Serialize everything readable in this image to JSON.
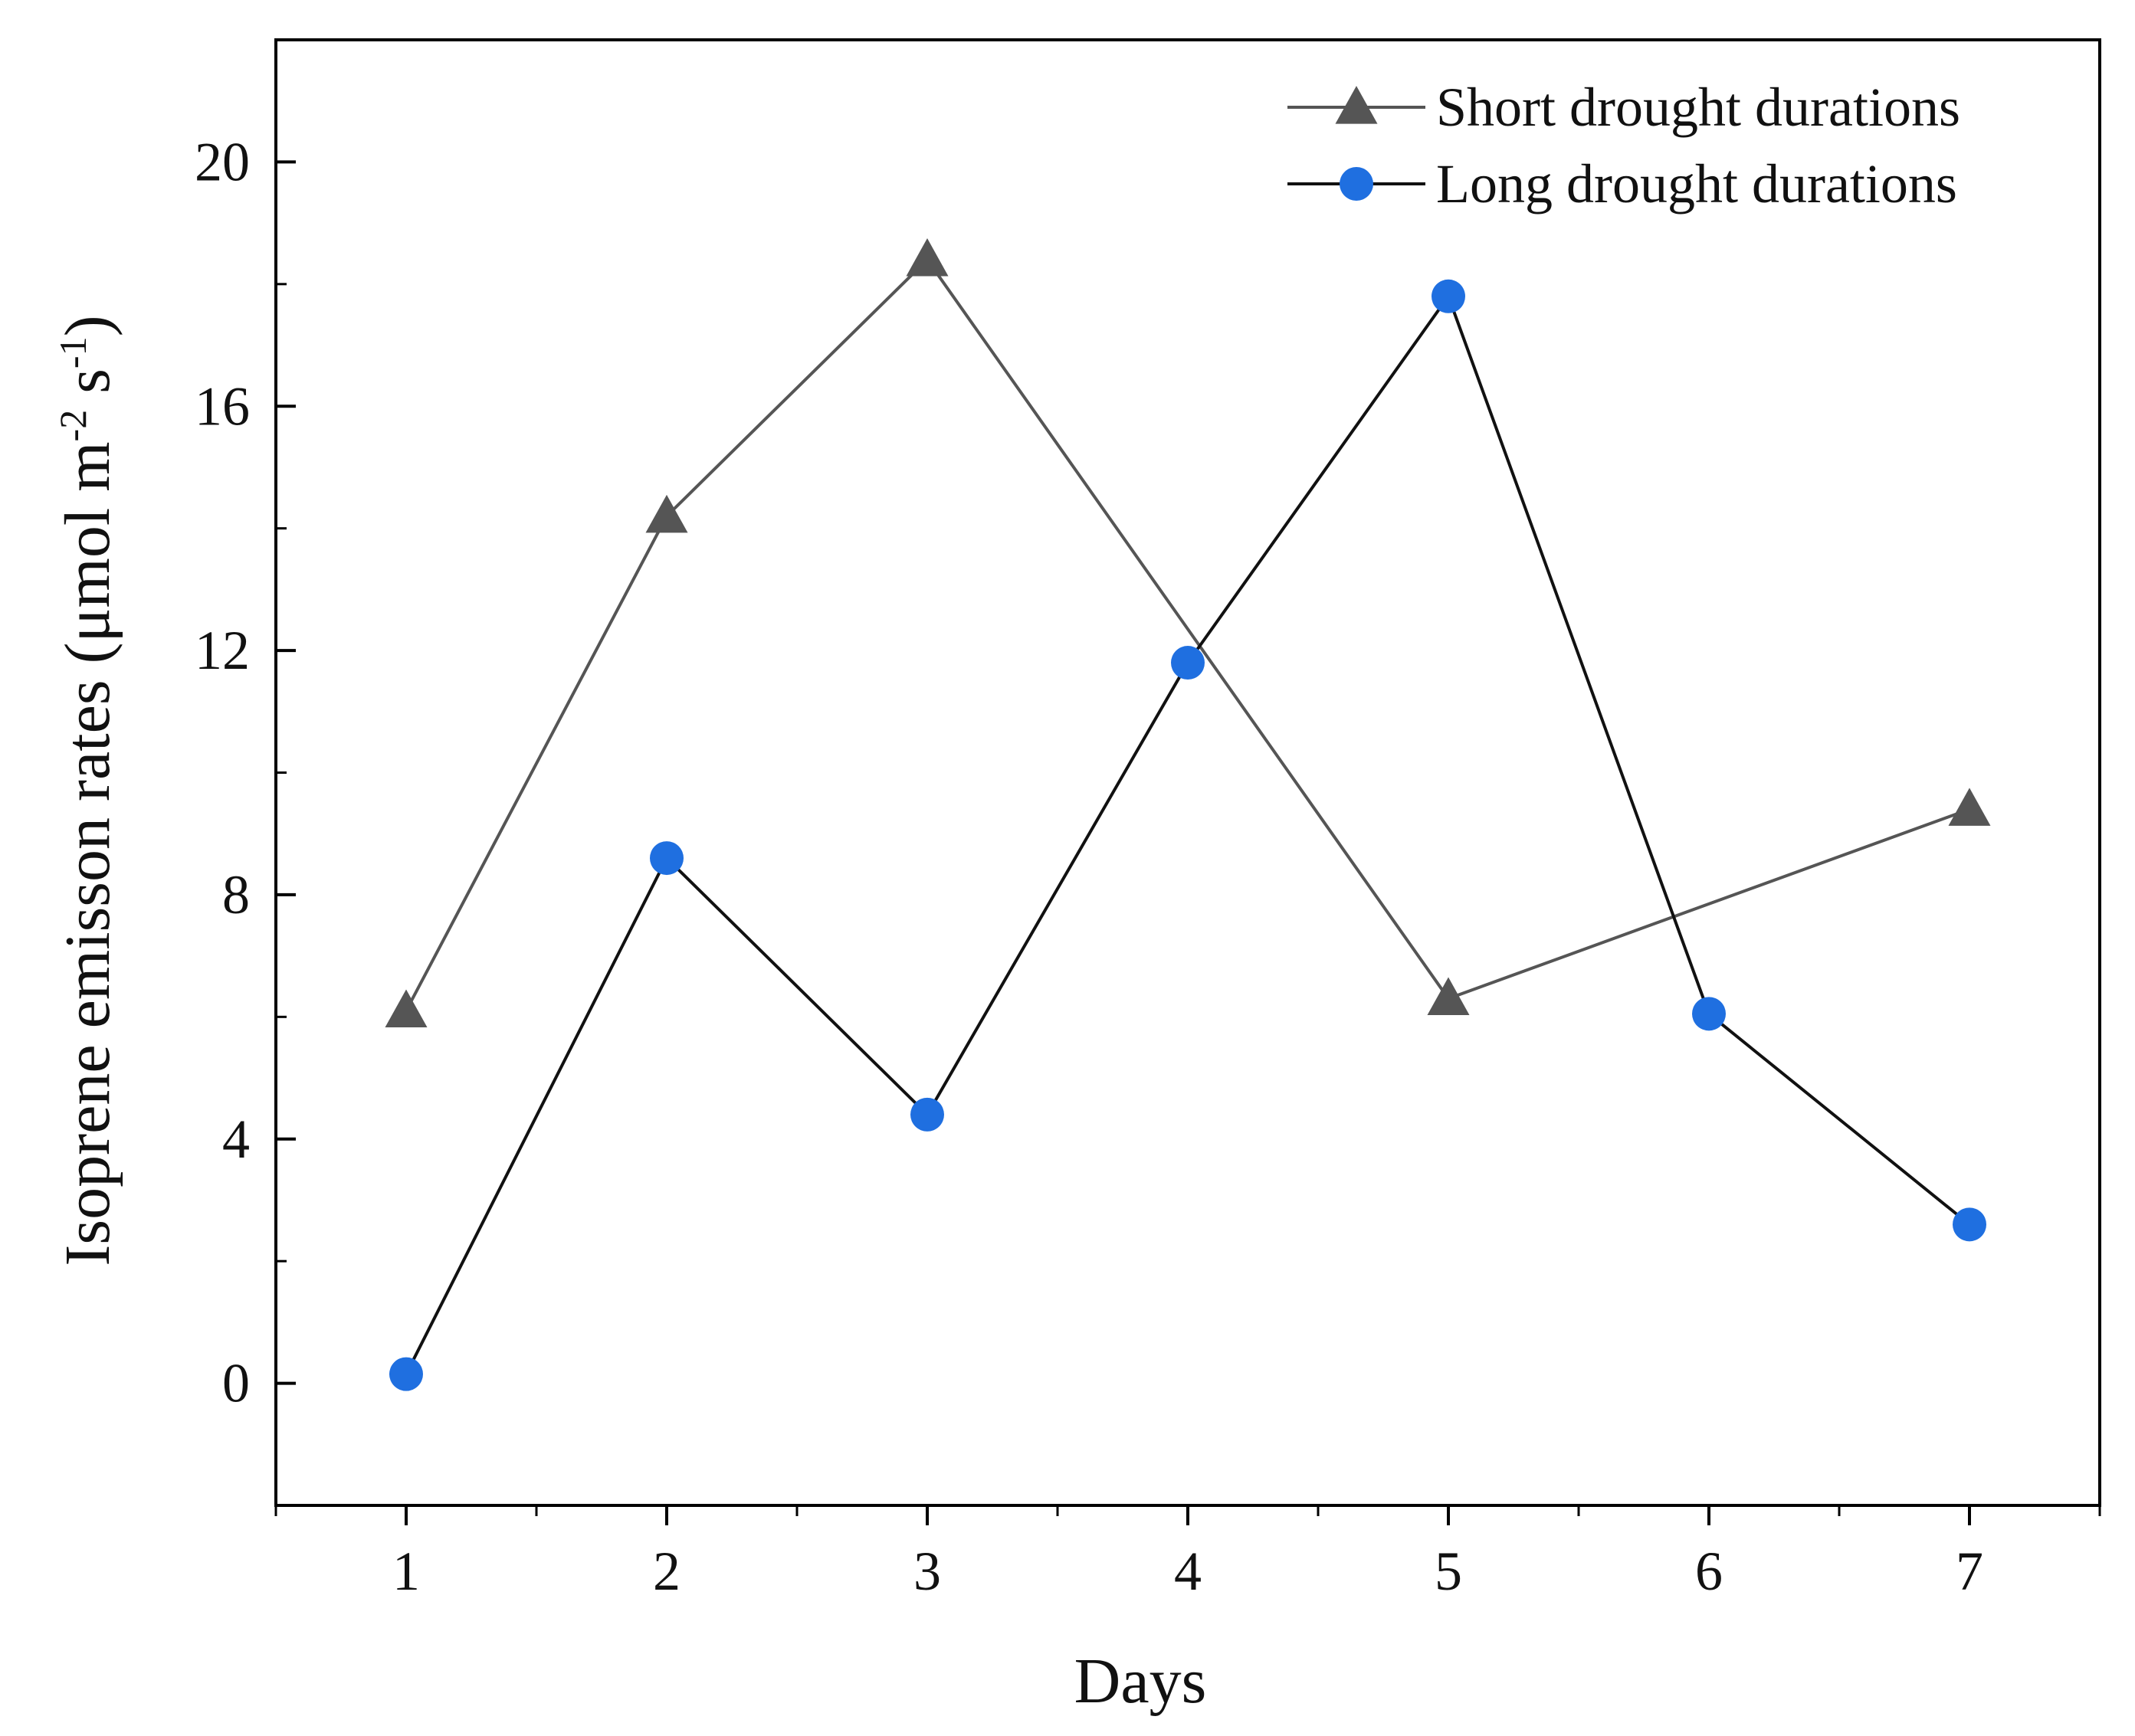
{
  "chart_data": {
    "type": "line",
    "title": "",
    "xlabel": "Days",
    "ylabel": {
      "prefix": "Isoprene emisson rates (μmol m",
      "exp1": "-2",
      "middle": " s",
      "exp2": "-1",
      "suffix": ")"
    },
    "x": [
      1,
      2,
      3,
      4,
      5,
      6,
      7
    ],
    "xlim": [
      0.5,
      7.5
    ],
    "ylim": [
      -2,
      22
    ],
    "xticks": [
      1,
      2,
      3,
      4,
      5,
      6,
      7
    ],
    "yticks": [
      0,
      4,
      8,
      12,
      16,
      20
    ],
    "grid": false,
    "legend_position": "top-right",
    "series": [
      {
        "name": "Short drought durations",
        "x": [
          1,
          2,
          3,
          5,
          7
        ],
        "values": [
          6.1,
          14.2,
          18.4,
          6.3,
          9.4
        ],
        "marker": "triangle",
        "color": "#555555",
        "line_color": "#555555"
      },
      {
        "name": "Long drought durations",
        "x": [
          1,
          2,
          3,
          4,
          5,
          6,
          7
        ],
        "values": [
          0.15,
          8.6,
          4.4,
          11.8,
          17.8,
          6.05,
          2.6
        ],
        "marker": "circle",
        "color": "#1f6fe0",
        "line_color": "#111111"
      }
    ]
  }
}
